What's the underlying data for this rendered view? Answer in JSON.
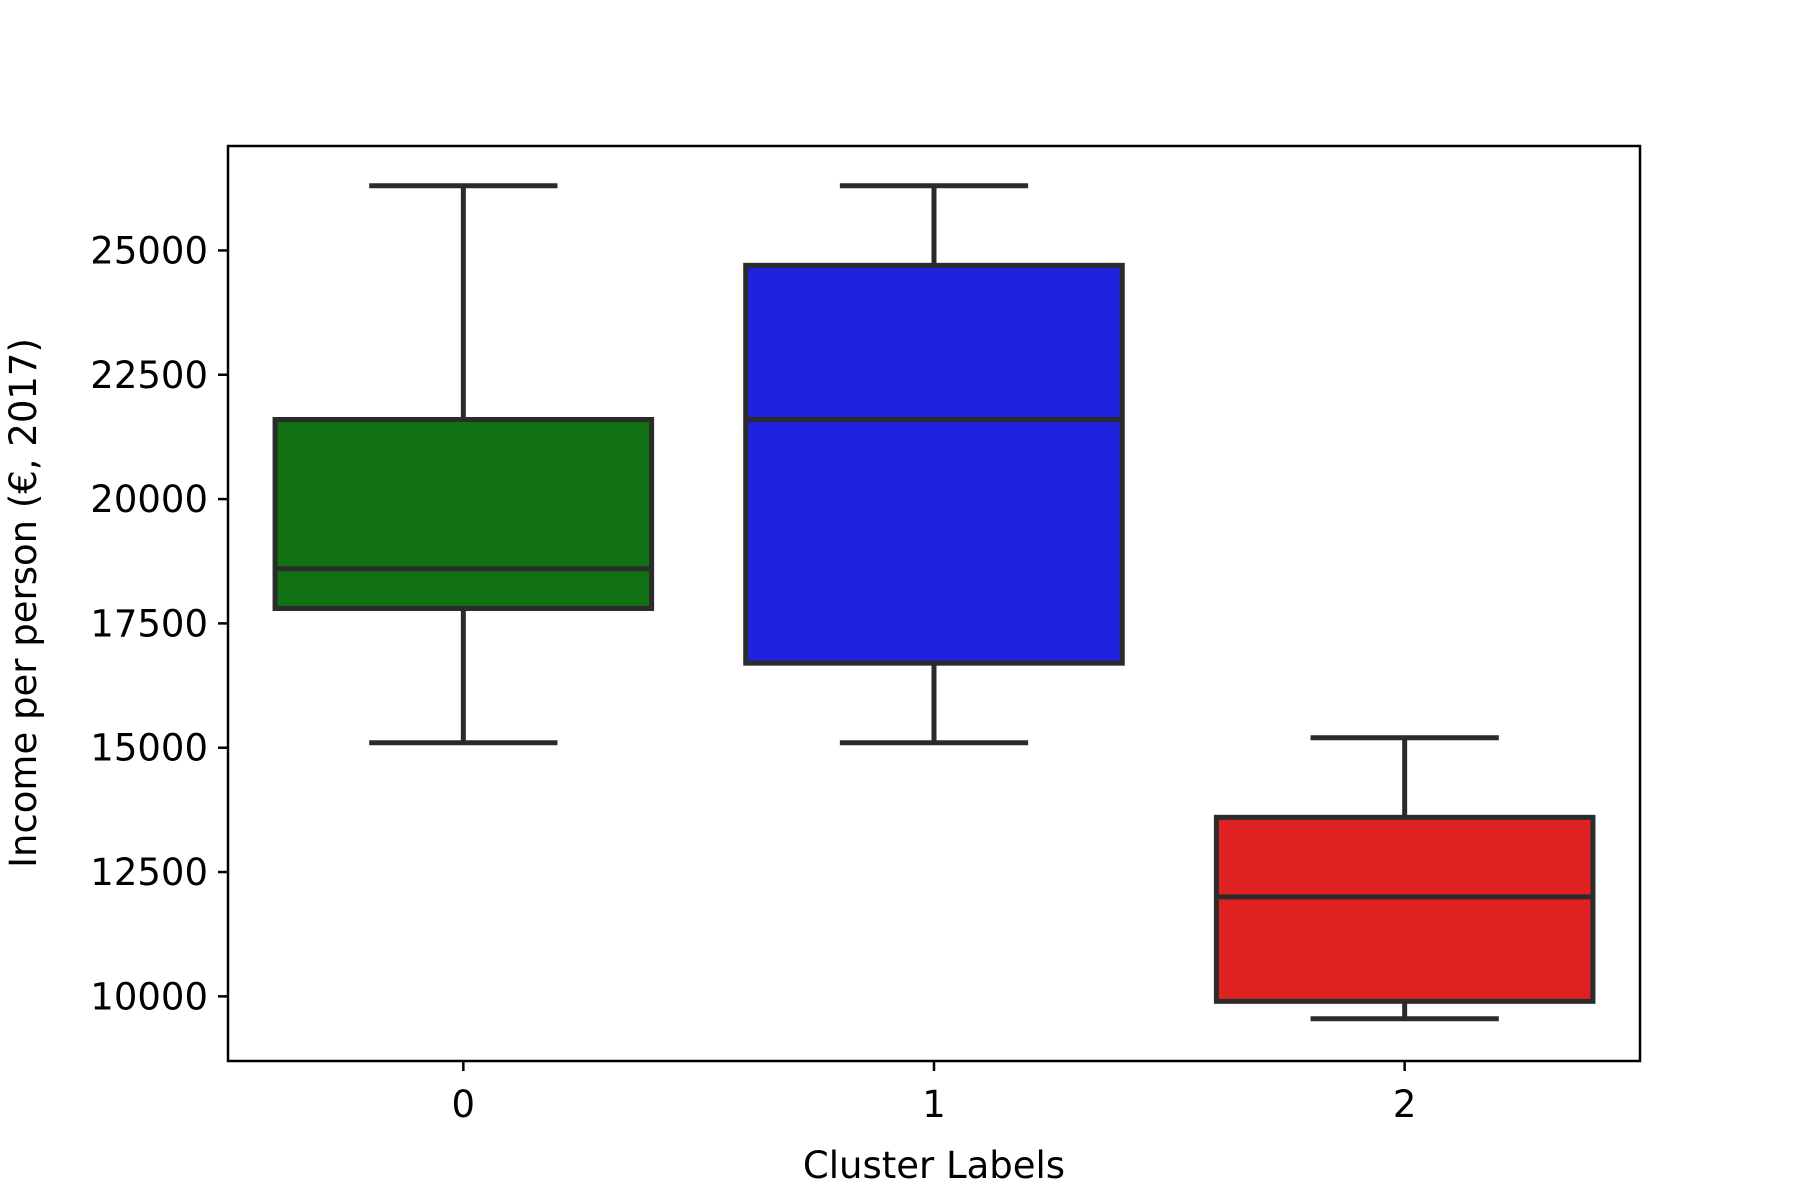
{
  "chart_data": {
    "type": "box",
    "title": "",
    "xlabel": "Cluster Labels",
    "ylabel": "Income per person (€, 2017)",
    "categories": [
      "0",
      "1",
      "2"
    ],
    "ylim": [
      8700,
      27100
    ],
    "yticks": [
      10000,
      12500,
      15000,
      17500,
      20000,
      22500,
      25000
    ],
    "ytick_labels": [
      "10000",
      "12500",
      "15000",
      "17500",
      "20000",
      "22500",
      "25000"
    ],
    "grid": false,
    "legend": "none",
    "boxes": [
      {
        "label": "0",
        "color": "#117011",
        "whisker_low": 15100,
        "q1": 17800,
        "median": 18600,
        "q3": 21600,
        "whisker_high": 26300
      },
      {
        "label": "1",
        "color": "#2121e0",
        "whisker_low": 15100,
        "q1": 16700,
        "median": 21600,
        "q3": 24700,
        "whisker_high": 26300
      },
      {
        "label": "2",
        "color": "#e02121",
        "whisker_low": 9550,
        "q1": 9900,
        "median": 12000,
        "q3": 13600,
        "whisker_high": 15200
      }
    ],
    "edge_color": "#2b2b2b"
  }
}
